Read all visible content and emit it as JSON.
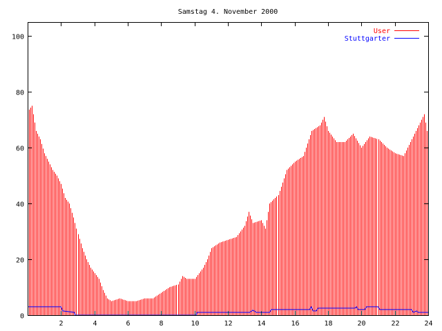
{
  "chart_data": {
    "type": "bar",
    "title": "Samstag 4. November 2000",
    "xlabel": "",
    "ylabel": "",
    "xlim": [
      0,
      24
    ],
    "ylim": [
      0,
      105
    ],
    "x_ticks": [
      2,
      4,
      6,
      8,
      10,
      12,
      14,
      16,
      18,
      20,
      22,
      24
    ],
    "y_ticks": [
      0,
      20,
      40,
      60,
      80,
      100
    ],
    "legend_position": "top-right",
    "grid": false,
    "series": [
      {
        "name": "User",
        "style": "impulses",
        "color": "#ff0000",
        "points": [
          [
            0,
            73
          ],
          [
            0.25,
            75
          ],
          [
            0.5,
            66
          ],
          [
            0.75,
            63
          ],
          [
            1,
            58
          ],
          [
            1.25,
            55
          ],
          [
            1.5,
            52
          ],
          [
            1.75,
            50
          ],
          [
            2,
            47
          ],
          [
            2.25,
            42
          ],
          [
            2.5,
            40
          ],
          [
            2.75,
            35
          ],
          [
            3,
            29
          ],
          [
            3.25,
            24
          ],
          [
            3.5,
            20
          ],
          [
            3.75,
            17
          ],
          [
            4,
            15
          ],
          [
            4.25,
            13
          ],
          [
            4.5,
            9
          ],
          [
            4.75,
            6
          ],
          [
            5,
            5
          ],
          [
            5.5,
            6
          ],
          [
            6,
            5
          ],
          [
            6.5,
            5
          ],
          [
            7,
            6
          ],
          [
            7.5,
            6
          ],
          [
            8,
            8
          ],
          [
            8.5,
            10
          ],
          [
            9,
            11
          ],
          [
            9.25,
            14
          ],
          [
            9.5,
            13
          ],
          [
            10,
            13
          ],
          [
            10.25,
            15
          ],
          [
            10.5,
            17
          ],
          [
            10.75,
            20
          ],
          [
            11,
            24
          ],
          [
            11.5,
            26
          ],
          [
            12,
            27
          ],
          [
            12.5,
            28
          ],
          [
            13,
            32
          ],
          [
            13.25,
            37
          ],
          [
            13.5,
            33
          ],
          [
            14,
            34
          ],
          [
            14.25,
            31
          ],
          [
            14.5,
            40
          ],
          [
            15,
            43
          ],
          [
            15.5,
            52
          ],
          [
            16,
            55
          ],
          [
            16.5,
            57
          ],
          [
            17,
            66
          ],
          [
            17.5,
            68
          ],
          [
            17.75,
            71
          ],
          [
            18,
            66
          ],
          [
            18.5,
            62
          ],
          [
            19,
            62
          ],
          [
            19.5,
            65
          ],
          [
            20,
            60
          ],
          [
            20.5,
            64
          ],
          [
            21,
            63
          ],
          [
            21.5,
            60
          ],
          [
            22,
            58
          ],
          [
            22.5,
            57
          ],
          [
            23,
            63
          ],
          [
            23.5,
            69
          ],
          [
            23.75,
            72
          ],
          [
            24,
            63
          ]
        ]
      },
      {
        "name": "Stuttgarter",
        "style": "line",
        "color": "#0000ff",
        "points": [
          [
            0,
            3
          ],
          [
            2,
            3
          ],
          [
            2.1,
            1.5
          ],
          [
            2.8,
            1
          ],
          [
            2.85,
            0
          ],
          [
            10.1,
            0
          ],
          [
            10.15,
            1
          ],
          [
            13.3,
            1
          ],
          [
            13.5,
            1.8
          ],
          [
            13.7,
            1
          ],
          [
            14.5,
            1
          ],
          [
            14.6,
            2
          ],
          [
            16.9,
            2
          ],
          [
            17,
            3
          ],
          [
            17.1,
            1.5
          ],
          [
            17.3,
            1.5
          ],
          [
            17.4,
            2.5
          ],
          [
            19.6,
            2.5
          ],
          [
            19.7,
            3
          ],
          [
            19.8,
            2
          ],
          [
            20.2,
            2
          ],
          [
            20.3,
            3
          ],
          [
            21,
            3
          ],
          [
            21.1,
            2
          ],
          [
            23,
            2
          ],
          [
            23.1,
            1
          ],
          [
            23.3,
            1.5
          ],
          [
            23.4,
            1
          ],
          [
            24,
            1
          ]
        ]
      }
    ]
  }
}
